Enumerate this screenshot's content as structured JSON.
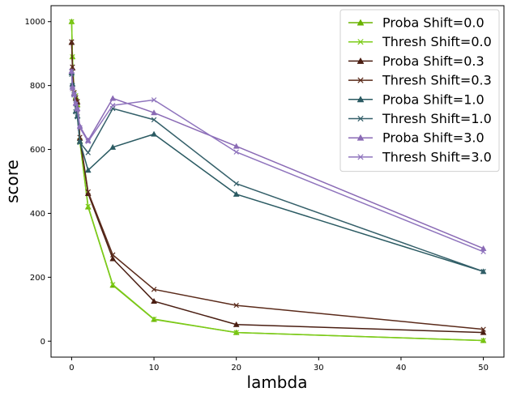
{
  "chart_data": {
    "type": "line",
    "title": "",
    "xlabel": "lambda",
    "ylabel": "score",
    "xlim": [
      -2.5,
      52.5
    ],
    "ylim": [
      -50,
      1050
    ],
    "xticks": [
      0,
      10,
      20,
      30,
      40,
      50
    ],
    "yticks": [
      0,
      200,
      400,
      600,
      800,
      1000
    ],
    "grid": false,
    "legend_position": "top-right",
    "x": [
      0,
      0.1,
      0.3,
      0.5,
      0.7,
      1,
      2,
      5,
      10,
      20,
      50
    ],
    "series": [
      {
        "name": "Proba Shift=0.0",
        "marker": "triangle",
        "color": "#6ab300",
        "values": [
          1000,
          890,
          775,
          765,
          740,
          625,
          420,
          175,
          68,
          27,
          2
        ]
      },
      {
        "name": "Thresh Shift=0.0",
        "marker": "x",
        "color": "#7dcc1a",
        "values": [
          1000,
          890,
          778,
          768,
          742,
          628,
          422,
          177,
          69,
          27,
          2
        ]
      },
      {
        "name": "Proba Shift=0.3",
        "marker": "triangle",
        "color": "#4a1e12",
        "values": [
          935,
          855,
          775,
          760,
          748,
          635,
          462,
          258,
          125,
          52,
          27
        ]
      },
      {
        "name": "Thresh Shift=0.3",
        "marker": "x",
        "color": "#5a2a1a",
        "values": [
          937,
          858,
          778,
          762,
          750,
          638,
          467,
          270,
          162,
          112,
          37
        ]
      },
      {
        "name": "Proba Shift=1.0",
        "marker": "triangle",
        "color": "#2a5a62",
        "values": [
          840,
          805,
          775,
          720,
          705,
          625,
          535,
          607,
          648,
          460,
          218
        ]
      },
      {
        "name": "Thresh Shift=1.0",
        "marker": "x",
        "color": "#35606a",
        "values": [
          835,
          800,
          772,
          718,
          702,
          622,
          590,
          728,
          693,
          493,
          218
        ]
      },
      {
        "name": "Proba Shift=3.0",
        "marker": "triangle",
        "color": "#8a6ab5",
        "values": [
          845,
          795,
          775,
          745,
          728,
          673,
          628,
          760,
          715,
          610,
          290
        ]
      },
      {
        "name": "Thresh Shift=3.0",
        "marker": "x",
        "color": "#8f74bd",
        "values": [
          845,
          790,
          770,
          742,
          725,
          668,
          625,
          738,
          755,
          592,
          280
        ]
      }
    ]
  }
}
